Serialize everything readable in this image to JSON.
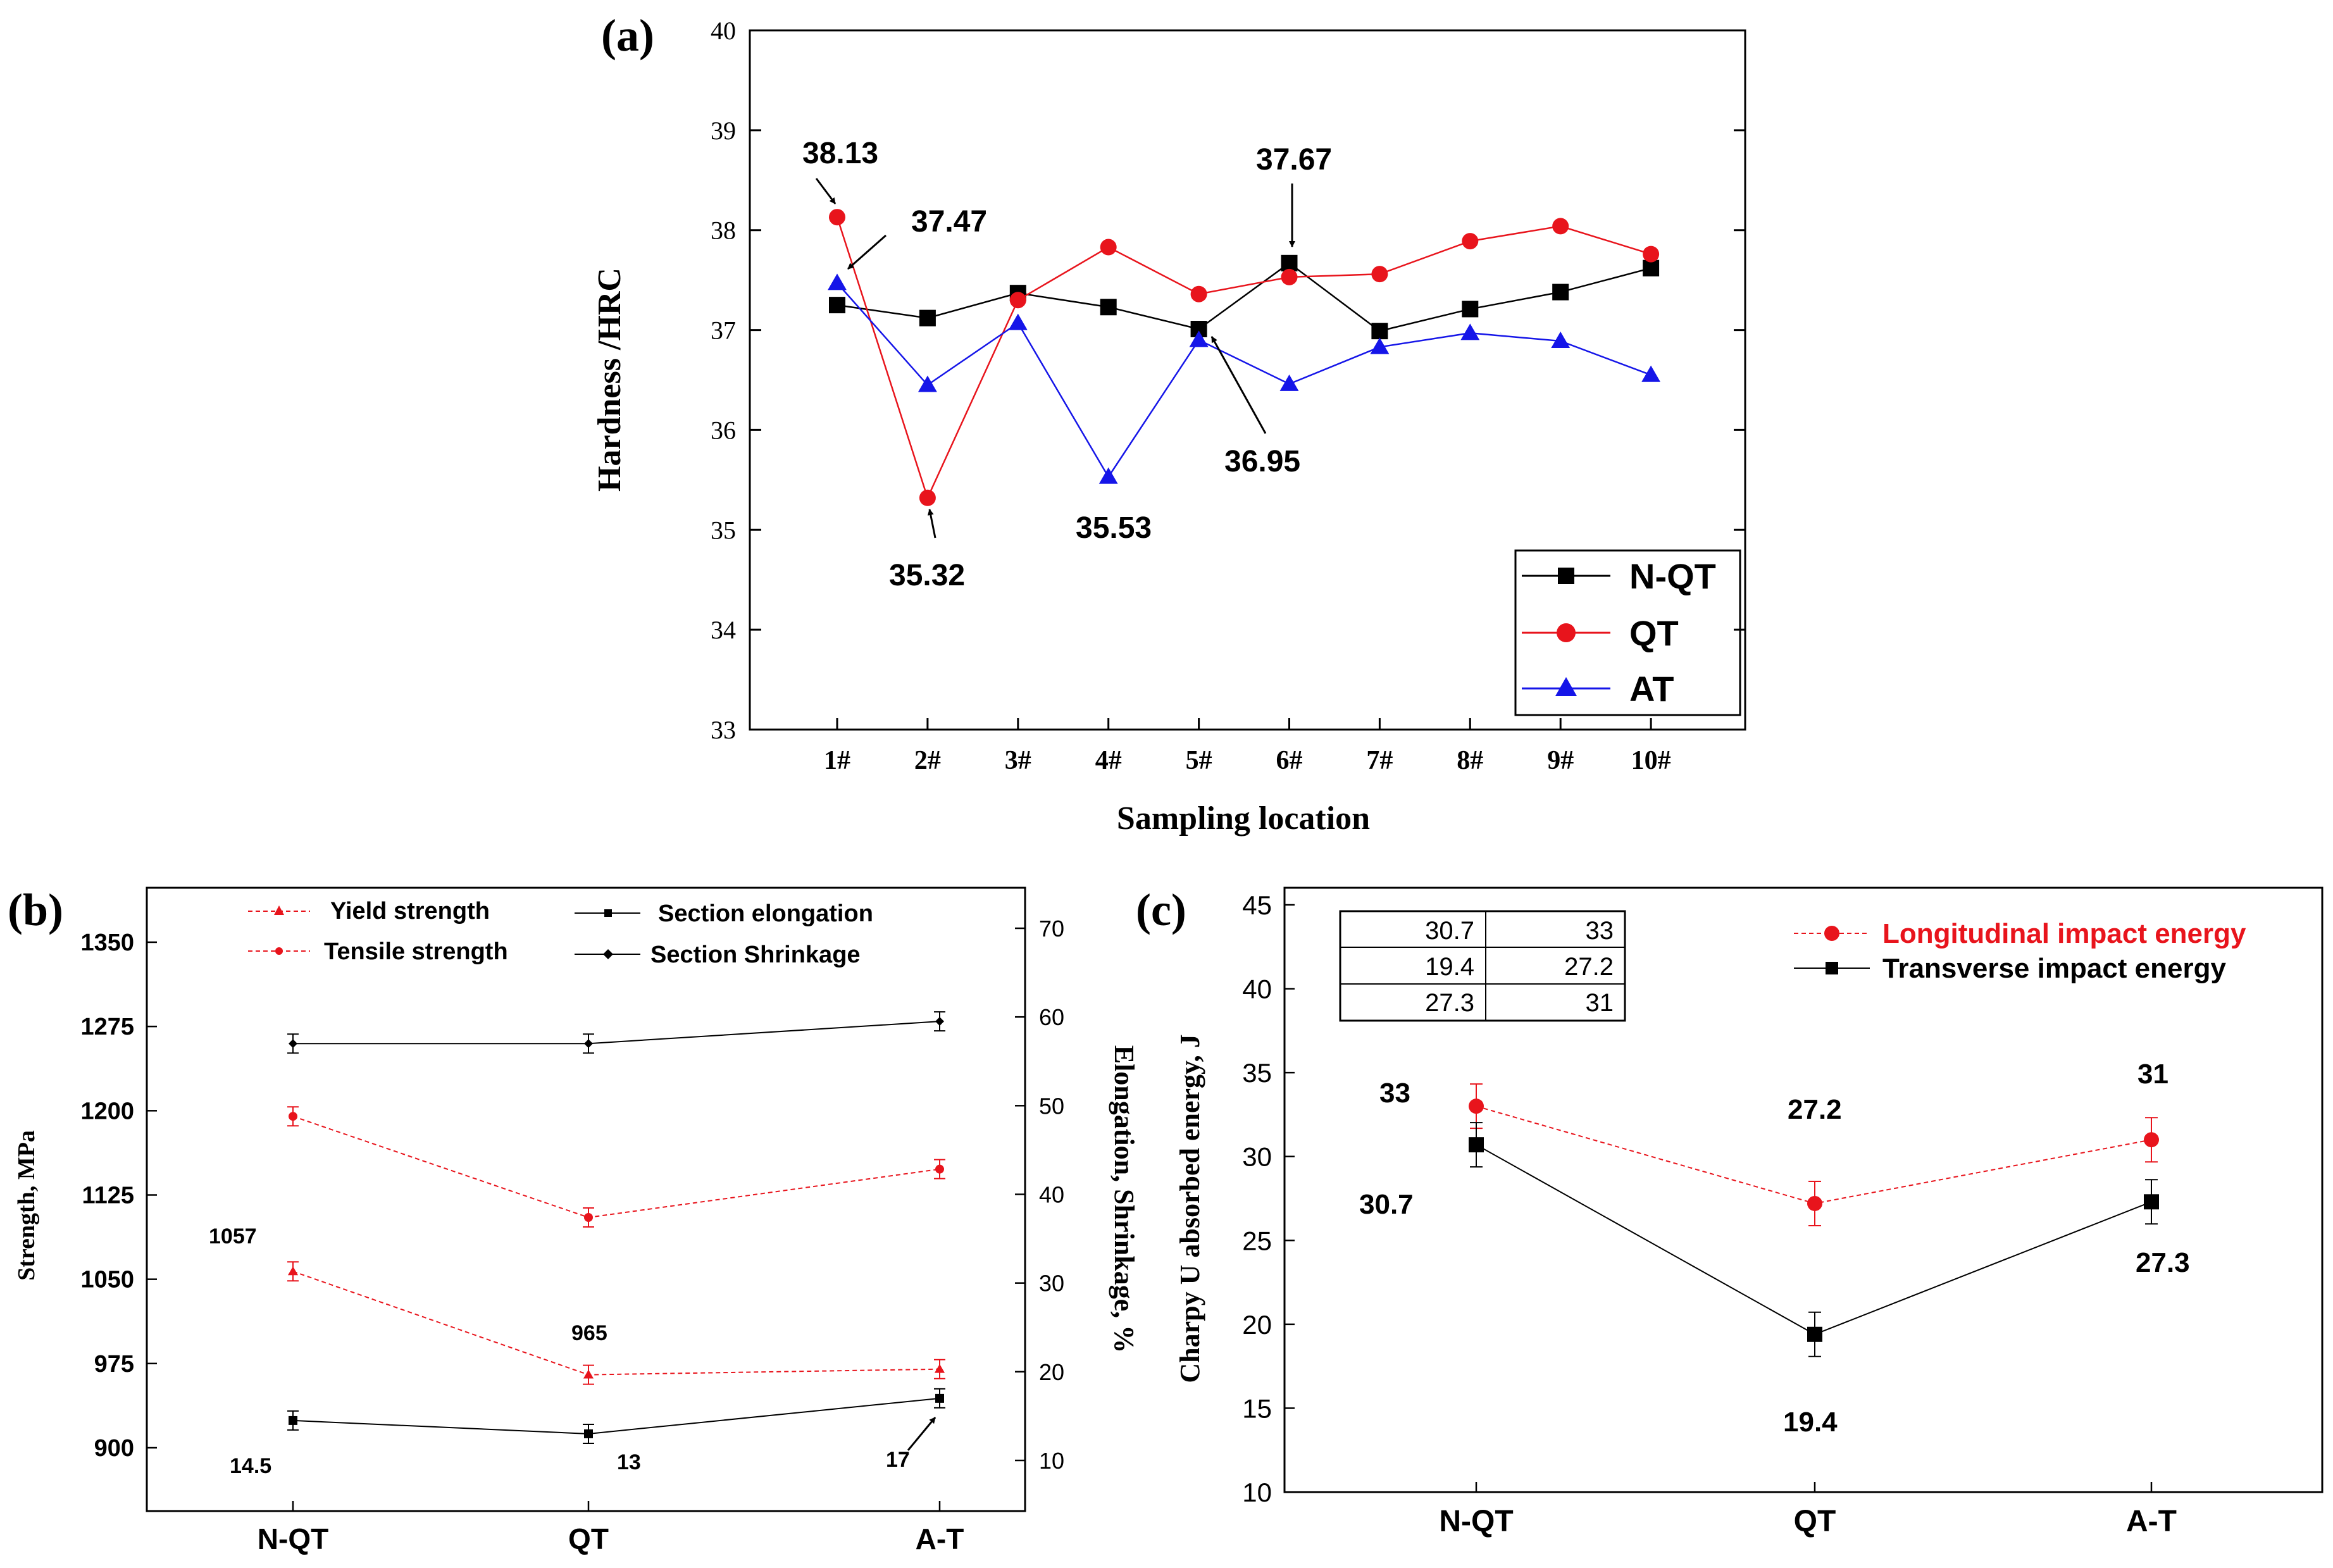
{
  "chart_data": [
    {
      "id": "a",
      "type": "line",
      "panel_label": "(a)",
      "title": "",
      "xlabel": "Sampling location",
      "ylabel": "Hardness /HRC",
      "ylim": [
        33,
        40
      ],
      "yticks": [
        "33",
        "34",
        "35",
        "36",
        "37",
        "38",
        "39",
        "40"
      ],
      "categories": [
        "1#",
        "2#",
        "3#",
        "4#",
        "5#",
        "6#",
        "7#",
        "8#",
        "9#",
        "10#"
      ],
      "legend_position": "bottom-right",
      "series": [
        {
          "name": "N-QT",
          "color": "#000000",
          "marker": "square",
          "values": [
            37.25,
            37.12,
            37.37,
            37.23,
            37.01,
            37.67,
            36.99,
            37.21,
            37.38,
            37.62
          ]
        },
        {
          "name": "QT",
          "color": "#e8141c",
          "marker": "circle",
          "values": [
            38.13,
            35.32,
            37.3,
            37.83,
            37.36,
            37.53,
            37.56,
            37.89,
            38.04,
            37.76
          ]
        },
        {
          "name": "AT",
          "color": "#1515e8",
          "marker": "triangle",
          "values": [
            37.47,
            36.45,
            37.07,
            35.53,
            36.9,
            36.46,
            36.83,
            36.97,
            36.89,
            36.55
          ]
        }
      ],
      "annotations": [
        "38.13",
        "37.47",
        "37.67",
        "35.32",
        "35.53",
        "36.95"
      ]
    },
    {
      "id": "b",
      "type": "line",
      "panel_label": "(b)",
      "title": "",
      "xlabel": "",
      "ylabel": "Strength, MPa",
      "y2label": "Elongation, Shrinkage, %",
      "categories": [
        "N-QT",
        "QT",
        "A-T"
      ],
      "ylim": [
        870,
        1400
      ],
      "yticks": [
        "900",
        "975",
        "1050",
        "1125",
        "1200",
        "1275",
        "1350"
      ],
      "y2lim": [
        5,
        75
      ],
      "y2ticks": [
        "10",
        "20",
        "30",
        "40",
        "50",
        "60",
        "70"
      ],
      "legend_position": "top",
      "series": [
        {
          "name": "Yield strength",
          "axis": "left",
          "color": "#e8141c",
          "dashed": true,
          "marker": "triangle",
          "values": [
            1057,
            965,
            970
          ]
        },
        {
          "name": "Tensile strength",
          "axis": "left",
          "color": "#e8141c",
          "dashed": true,
          "marker": "circle",
          "values": [
            1195,
            1105,
            1148
          ]
        },
        {
          "name": "Section elongation",
          "axis": "right",
          "color": "#000000",
          "dashed": false,
          "marker": "square",
          "values": [
            14.5,
            13,
            17
          ]
        },
        {
          "name": "Section Shrinkage",
          "axis": "right",
          "color": "#000000",
          "dashed": false,
          "marker": "diamond",
          "values": [
            57,
            57,
            59.5
          ]
        }
      ],
      "annotations": [
        "1057",
        "965",
        "14.5",
        "13",
        "17"
      ]
    },
    {
      "id": "c",
      "type": "line",
      "panel_label": "(c)",
      "title": "",
      "xlabel": "",
      "ylabel": "Charpy U absorbed energy, J",
      "categories": [
        "N-QT",
        "QT",
        "A-T"
      ],
      "ylim": [
        10,
        45
      ],
      "yticks": [
        "10",
        "15",
        "20",
        "25",
        "30",
        "35",
        "40",
        "45"
      ],
      "legend_position": "top-right",
      "series": [
        {
          "name": "Longitudinal impact energy",
          "color": "#e8141c",
          "dashed": true,
          "marker": "circle",
          "values": [
            33,
            27.2,
            31
          ]
        },
        {
          "name": "Transverse impact energy",
          "color": "#000000",
          "dashed": false,
          "marker": "square",
          "values": [
            30.7,
            19.4,
            27.3
          ]
        }
      ],
      "table": [
        [
          "30.7",
          "33"
        ],
        [
          "19.4",
          "27.2"
        ],
        [
          "27.3",
          "31"
        ]
      ],
      "annotations": [
        "33",
        "30.7",
        "27.2",
        "19.4",
        "31",
        "27.3"
      ]
    }
  ]
}
